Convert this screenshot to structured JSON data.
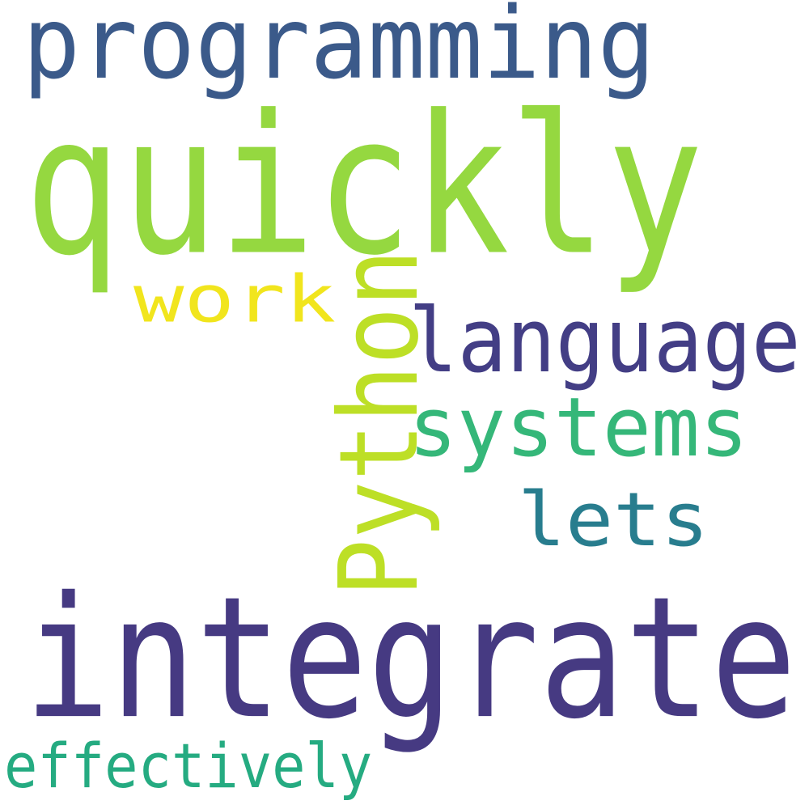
{
  "words": [
    {
      "id": "programming",
      "text": "programming",
      "color": "#3b5a8a",
      "orientation": "horizontal"
    },
    {
      "id": "quickly",
      "text": "quickly",
      "color": "#95d840",
      "orientation": "horizontal"
    },
    {
      "id": "work",
      "text": "work",
      "color": "#f1e51d",
      "orientation": "horizontal"
    },
    {
      "id": "python",
      "text": "Python",
      "color": "#bddf26",
      "orientation": "vertical"
    },
    {
      "id": "language",
      "text": "language",
      "color": "#433e85",
      "orientation": "horizontal"
    },
    {
      "id": "systems",
      "text": "systems",
      "color": "#35b779",
      "orientation": "horizontal"
    },
    {
      "id": "lets",
      "text": "lets",
      "color": "#287d8e",
      "orientation": "horizontal"
    },
    {
      "id": "integrate",
      "text": "integrate",
      "color": "#463a82",
      "orientation": "horizontal"
    },
    {
      "id": "effectively",
      "text": "effectively",
      "color": "#25ab81",
      "orientation": "horizontal"
    }
  ]
}
